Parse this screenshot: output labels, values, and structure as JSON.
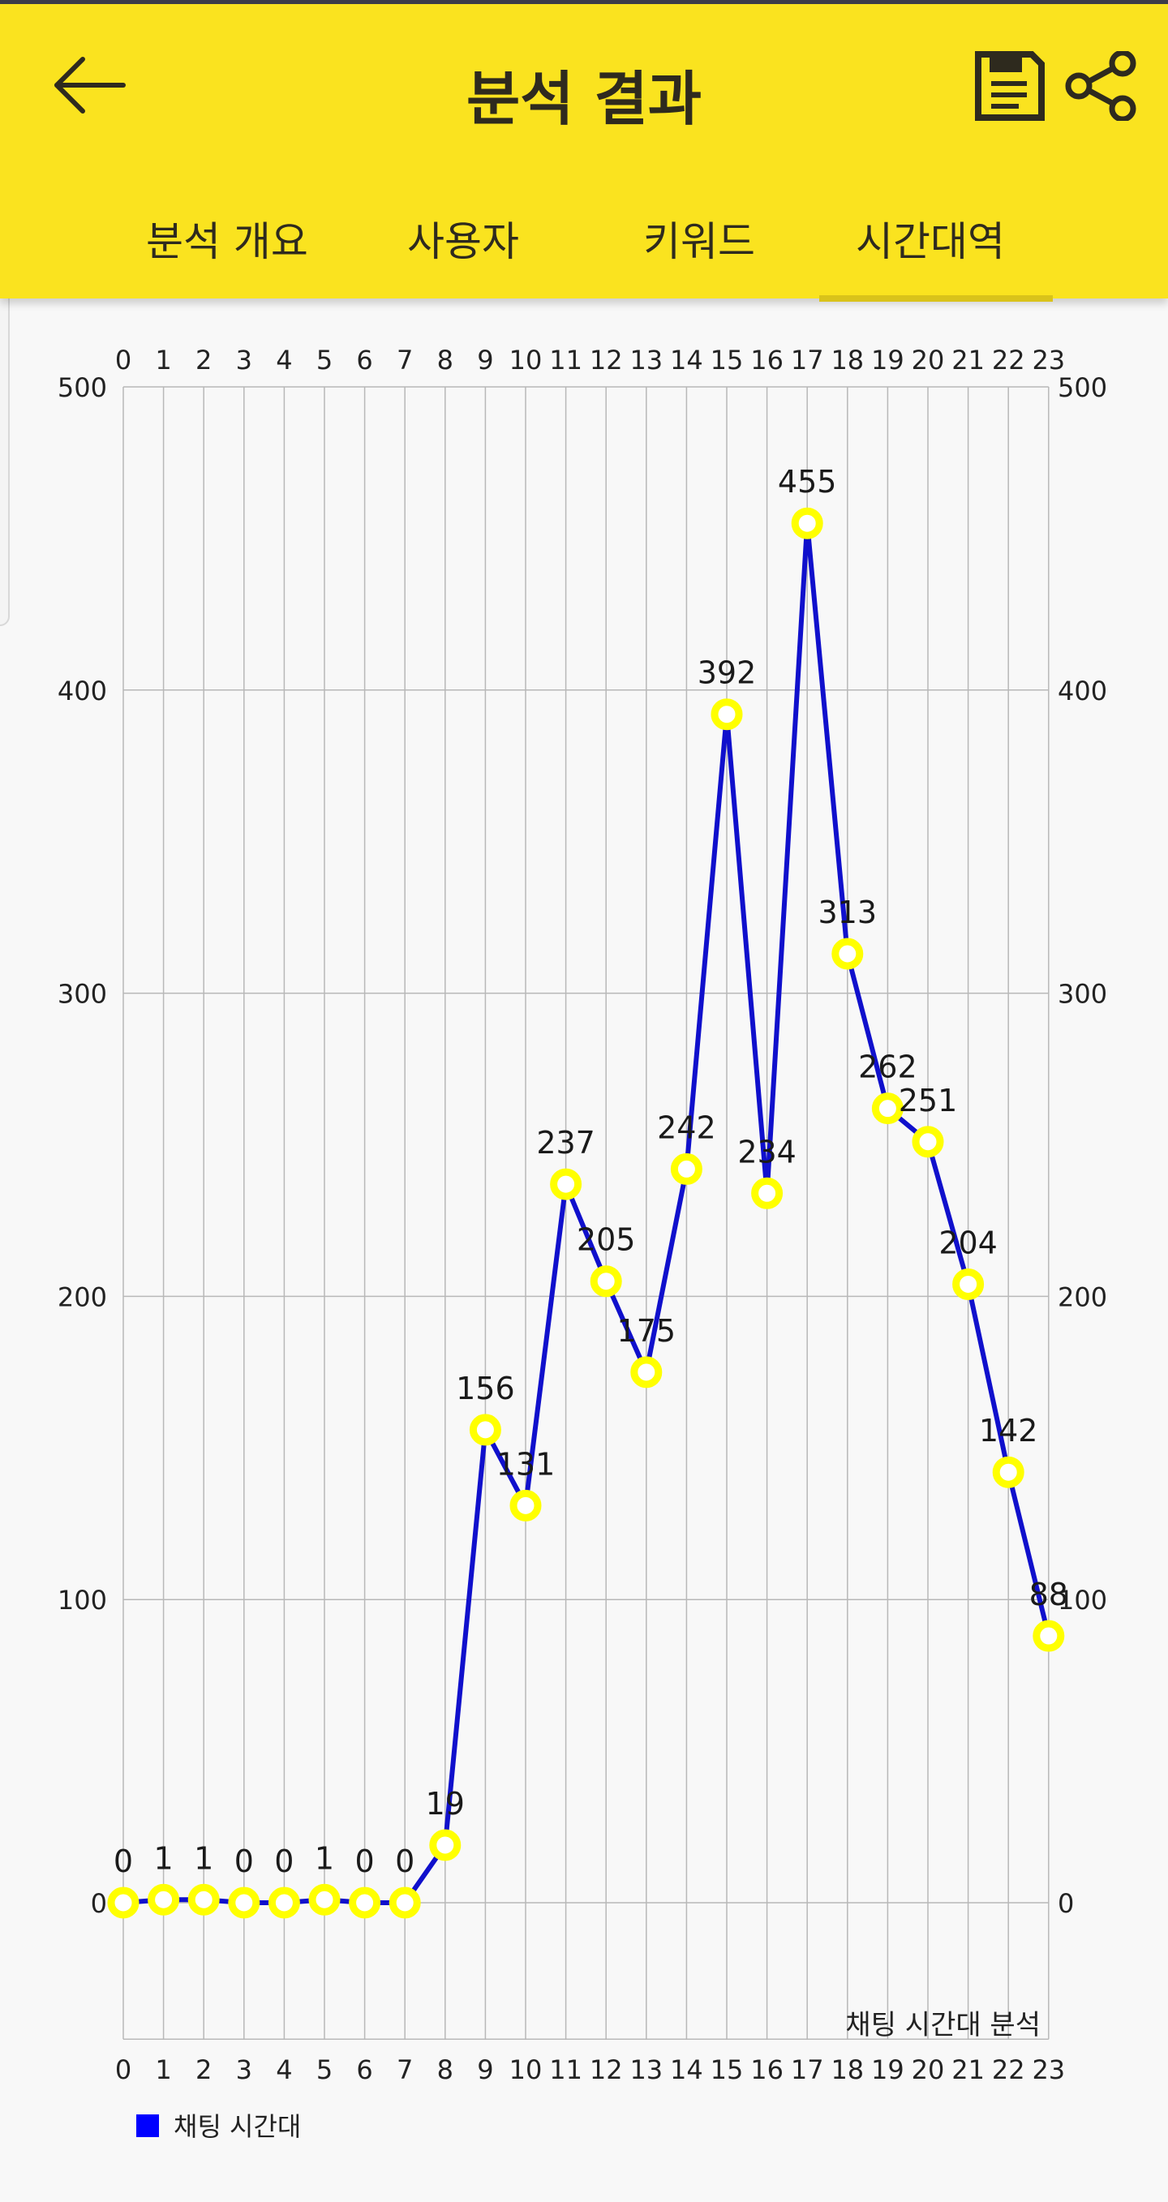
{
  "header": {
    "title": "분석 결과",
    "back_icon": "arrow-left-icon",
    "save_icon": "save-icon",
    "share_icon": "share-icon"
  },
  "tabs": [
    {
      "label": "분석 개요",
      "active": false
    },
    {
      "label": "사용자",
      "active": false
    },
    {
      "label": "키워드",
      "active": false
    },
    {
      "label": "시간대역",
      "active": true
    }
  ],
  "colors": {
    "header_bg": "#fae31f",
    "line": "#1010cc",
    "marker": "#ffff00",
    "legend": "#0000ff"
  },
  "chart_data": {
    "type": "line",
    "title": "채팅 시간대 분석",
    "categories": [
      "0",
      "1",
      "2",
      "3",
      "4",
      "5",
      "6",
      "7",
      "8",
      "9",
      "10",
      "11",
      "12",
      "13",
      "14",
      "15",
      "16",
      "17",
      "18",
      "19",
      "20",
      "21",
      "22",
      "23"
    ],
    "series": [
      {
        "name": "채팅 시간대",
        "values": [
          0,
          1,
          1,
          0,
          0,
          1,
          0,
          0,
          19,
          156,
          131,
          237,
          205,
          175,
          242,
          392,
          234,
          455,
          313,
          262,
          251,
          204,
          142,
          88
        ]
      }
    ],
    "yticks": [
      0,
      100,
      200,
      300,
      400,
      500
    ],
    "ylim": [
      -45,
      500
    ],
    "grid": true,
    "legend": "bottom-left"
  }
}
